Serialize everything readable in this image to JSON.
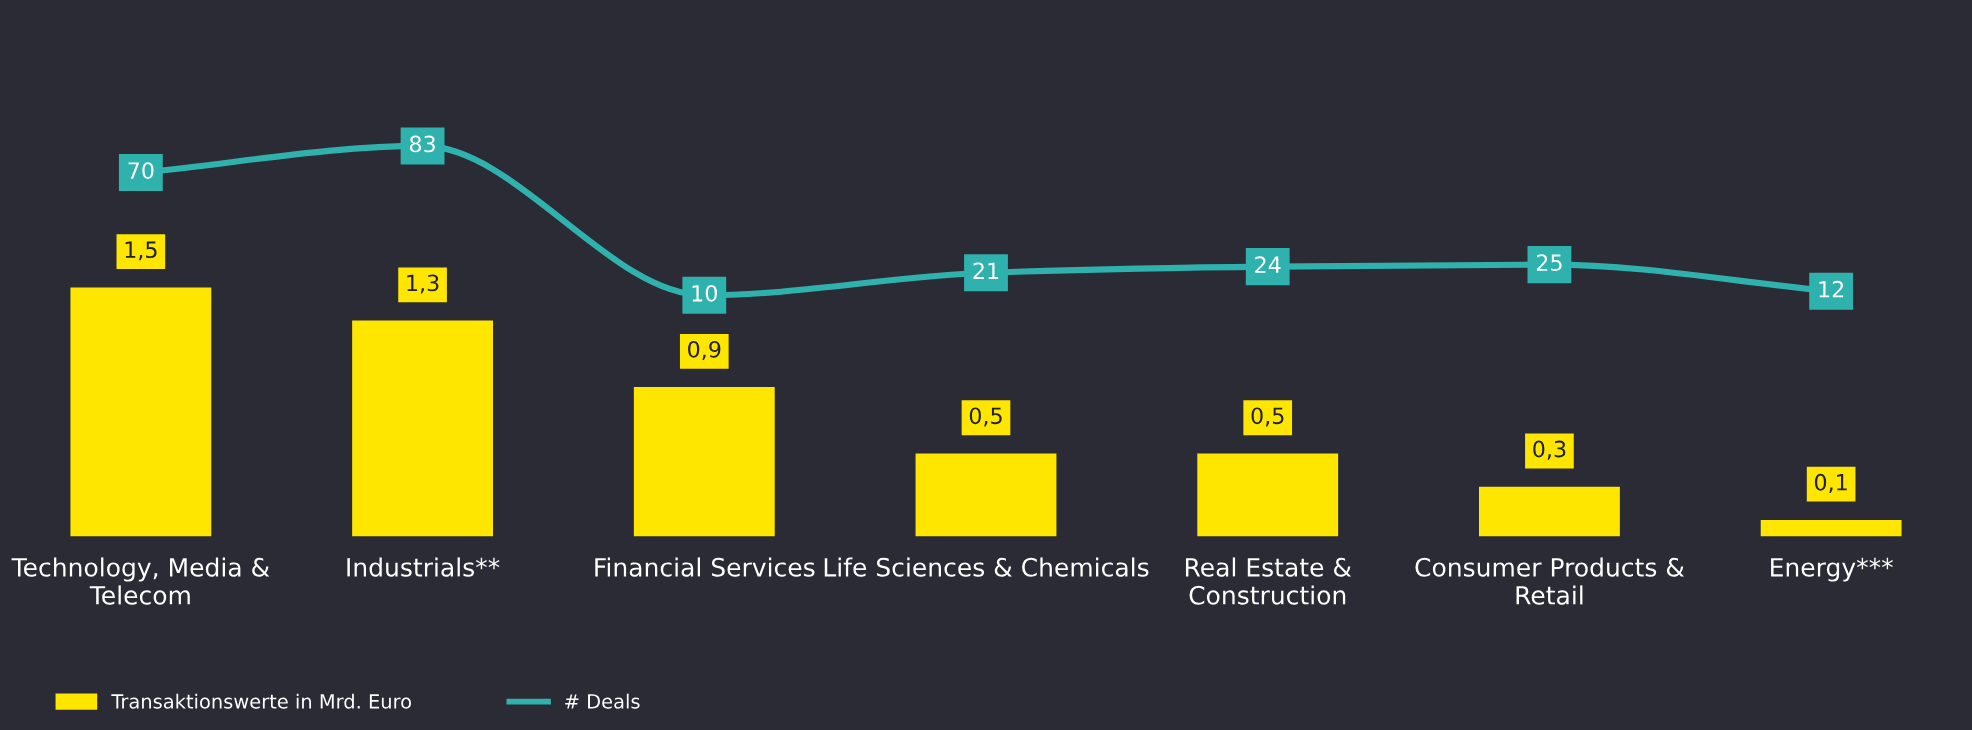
{
  "chart_data": {
    "type": "bar",
    "categories": [
      "Technology, Media & Telecom",
      "Industrials**",
      "Financial Services",
      "Life Sciences & Chemicals",
      "Real Estate & Construction",
      "Consumer Products & Retail",
      "Energy***"
    ],
    "series": [
      {
        "name": "Transaktionswerte in Mrd. Euro",
        "color": "#ffe600",
        "values": [
          1.5,
          1.3,
          0.9,
          0.5,
          0.5,
          0.3,
          0.1
        ],
        "value_labels": [
          "1,5",
          "1,3",
          "0,9",
          "0,5",
          "0,5",
          "0,3",
          "0,1"
        ]
      },
      {
        "name": "# Deals",
        "type": "line",
        "axis": "y2",
        "color": "#2fb2ae",
        "values": [
          70,
          83,
          10,
          21,
          24,
          25,
          12
        ],
        "value_labels": [
          "70",
          "83",
          "10",
          "21",
          "24",
          "25",
          "12"
        ]
      }
    ],
    "tick_labels": "x",
    "legend": "bottom left"
  }
}
